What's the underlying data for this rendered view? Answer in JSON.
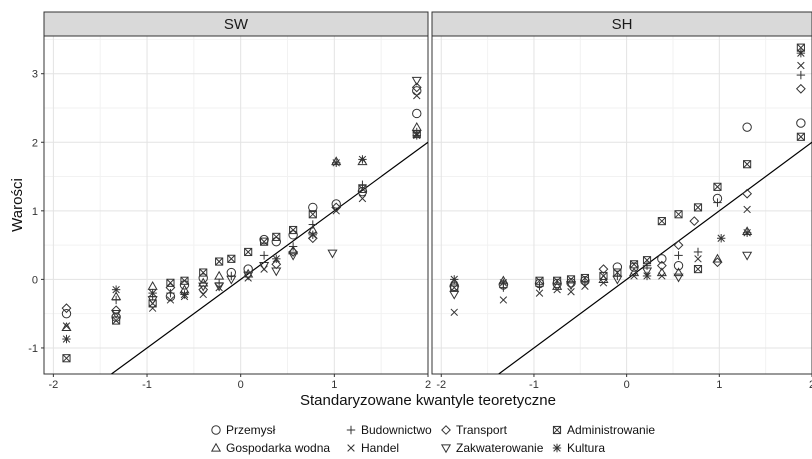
{
  "chart_data": {
    "type": "scatter",
    "xlabel": "Standaryzowane kwantyle teoretyczne",
    "ylabel": "Warości",
    "xlim": [
      -2.1,
      2.0
    ],
    "ylim": [
      -1.38,
      3.55
    ],
    "xticks": [
      -2,
      -1,
      0,
      1,
      2
    ],
    "yticks": [
      -1,
      0,
      1,
      2,
      3
    ],
    "grid": true,
    "legend_position": "bottom",
    "legend": [
      {
        "name": "Przemysł",
        "shape": "circle"
      },
      {
        "name": "Gospodarka wodna",
        "shape": "triangle"
      },
      {
        "name": "Budownictwo",
        "shape": "plus"
      },
      {
        "name": "Handel",
        "shape": "cross"
      },
      {
        "name": "Transport",
        "shape": "diamond"
      },
      {
        "name": "Zakwaterowanie",
        "shape": "triangle-down"
      },
      {
        "name": "Administrowanie",
        "shape": "square-x"
      },
      {
        "name": "Kultura",
        "shape": "asterisk"
      }
    ],
    "panels": [
      {
        "title": "SW",
        "line": [
          [
            -1.38,
            -1.38
          ],
          [
            2.05,
            2.05
          ]
        ],
        "points": [
          {
            "x": -1.86,
            "y": -0.5,
            "shape": "circle"
          },
          {
            "x": -1.86,
            "y": -0.42,
            "shape": "diamond"
          },
          {
            "x": -1.86,
            "y": -0.7,
            "shape": "triangle"
          },
          {
            "x": -1.86,
            "y": -0.68,
            "shape": "cross"
          },
          {
            "x": -1.86,
            "y": -0.87,
            "shape": "asterisk"
          },
          {
            "x": -1.86,
            "y": -1.15,
            "shape": "square-x"
          },
          {
            "x": -1.33,
            "y": -0.15,
            "shape": "asterisk"
          },
          {
            "x": -1.33,
            "y": -0.25,
            "shape": "triangle"
          },
          {
            "x": -1.33,
            "y": -0.3,
            "shape": "plus"
          },
          {
            "x": -1.33,
            "y": -0.45,
            "shape": "diamond"
          },
          {
            "x": -1.33,
            "y": -0.5,
            "shape": "triangle-down"
          },
          {
            "x": -1.33,
            "y": -0.55,
            "shape": "circle"
          },
          {
            "x": -1.33,
            "y": -0.6,
            "shape": "square-x"
          },
          {
            "x": -0.94,
            "y": -0.1,
            "shape": "triangle"
          },
          {
            "x": -0.94,
            "y": -0.2,
            "shape": "asterisk"
          },
          {
            "x": -0.94,
            "y": -0.25,
            "shape": "plus"
          },
          {
            "x": -0.94,
            "y": -0.3,
            "shape": "triangle-down"
          },
          {
            "x": -0.94,
            "y": -0.35,
            "shape": "square-x"
          },
          {
            "x": -0.94,
            "y": -0.42,
            "shape": "cross"
          },
          {
            "x": -0.75,
            "y": -0.05,
            "shape": "square-x"
          },
          {
            "x": -0.75,
            "y": -0.12,
            "shape": "diamond"
          },
          {
            "x": -0.75,
            "y": -0.2,
            "shape": "plus"
          },
          {
            "x": -0.75,
            "y": -0.25,
            "shape": "circle"
          },
          {
            "x": -0.75,
            "y": -0.3,
            "shape": "cross"
          },
          {
            "x": -0.6,
            "y": -0.02,
            "shape": "square-x"
          },
          {
            "x": -0.6,
            "y": -0.08,
            "shape": "circle"
          },
          {
            "x": -0.6,
            "y": -0.15,
            "shape": "triangle"
          },
          {
            "x": -0.6,
            "y": -0.22,
            "shape": "asterisk"
          },
          {
            "x": -0.6,
            "y": -0.25,
            "shape": "cross"
          },
          {
            "x": -0.4,
            "y": 0.1,
            "shape": "square-x"
          },
          {
            "x": -0.4,
            "y": 0.02,
            "shape": "circle"
          },
          {
            "x": -0.4,
            "y": -0.05,
            "shape": "triangle"
          },
          {
            "x": -0.4,
            "y": -0.1,
            "shape": "triangle-down"
          },
          {
            "x": -0.4,
            "y": -0.15,
            "shape": "diamond"
          },
          {
            "x": -0.4,
            "y": -0.22,
            "shape": "cross"
          },
          {
            "x": -0.23,
            "y": 0.26,
            "shape": "square-x"
          },
          {
            "x": -0.23,
            "y": 0.05,
            "shape": "triangle"
          },
          {
            "x": -0.23,
            "y": -0.05,
            "shape": "plus"
          },
          {
            "x": -0.23,
            "y": -0.1,
            "shape": "triangle-down"
          },
          {
            "x": -0.23,
            "y": -0.12,
            "shape": "cross"
          },
          {
            "x": -0.1,
            "y": 0.3,
            "shape": "square-x"
          },
          {
            "x": -0.1,
            "y": 0.1,
            "shape": "circle"
          },
          {
            "x": -0.1,
            "y": 0.05,
            "shape": "plus"
          },
          {
            "x": -0.1,
            "y": 0.0,
            "shape": "triangle-down"
          },
          {
            "x": 0.08,
            "y": 0.4,
            "shape": "square-x"
          },
          {
            "x": 0.08,
            "y": 0.15,
            "shape": "circle"
          },
          {
            "x": 0.08,
            "y": 0.08,
            "shape": "triangle"
          },
          {
            "x": 0.08,
            "y": 0.02,
            "shape": "cross"
          },
          {
            "x": 0.08,
            "y": 0.06,
            "shape": "triangle-down"
          },
          {
            "x": 0.25,
            "y": 0.55,
            "shape": "square-x"
          },
          {
            "x": 0.25,
            "y": 0.58,
            "shape": "circle"
          },
          {
            "x": 0.25,
            "y": 0.35,
            "shape": "plus"
          },
          {
            "x": 0.25,
            "y": 0.2,
            "shape": "triangle-down"
          },
          {
            "x": 0.25,
            "y": 0.15,
            "shape": "cross"
          },
          {
            "x": 0.38,
            "y": 0.62,
            "shape": "square-x"
          },
          {
            "x": 0.38,
            "y": 0.55,
            "shape": "circle"
          },
          {
            "x": 0.38,
            "y": 0.3,
            "shape": "asterisk"
          },
          {
            "x": 0.38,
            "y": 0.22,
            "shape": "diamond"
          },
          {
            "x": 0.38,
            "y": 0.12,
            "shape": "triangle-down"
          },
          {
            "x": 0.56,
            "y": 0.72,
            "shape": "square-x"
          },
          {
            "x": 0.56,
            "y": 0.65,
            "shape": "circle"
          },
          {
            "x": 0.56,
            "y": 0.48,
            "shape": "plus"
          },
          {
            "x": 0.56,
            "y": 0.42,
            "shape": "triangle"
          },
          {
            "x": 0.56,
            "y": 0.4,
            "shape": "diamond"
          },
          {
            "x": 0.56,
            "y": 0.35,
            "shape": "triangle-down"
          },
          {
            "x": 0.77,
            "y": 1.05,
            "shape": "circle"
          },
          {
            "x": 0.77,
            "y": 0.95,
            "shape": "square-x"
          },
          {
            "x": 0.77,
            "y": 0.8,
            "shape": "plus"
          },
          {
            "x": 0.77,
            "y": 0.72,
            "shape": "triangle"
          },
          {
            "x": 0.77,
            "y": 0.65,
            "shape": "asterisk"
          },
          {
            "x": 0.77,
            "y": 0.6,
            "shape": "diamond"
          },
          {
            "x": 1.02,
            "y": 1.72,
            "shape": "triangle"
          },
          {
            "x": 1.02,
            "y": 1.7,
            "shape": "asterisk"
          },
          {
            "x": 1.02,
            "y": 1.1,
            "shape": "circle"
          },
          {
            "x": 1.02,
            "y": 1.05,
            "shape": "diamond"
          },
          {
            "x": 1.02,
            "y": 1.0,
            "shape": "cross"
          },
          {
            "x": 0.98,
            "y": 0.38,
            "shape": "triangle-down"
          },
          {
            "x": 1.3,
            "y": 1.75,
            "shape": "asterisk"
          },
          {
            "x": 1.3,
            "y": 1.72,
            "shape": "triangle"
          },
          {
            "x": 1.3,
            "y": 1.38,
            "shape": "plus"
          },
          {
            "x": 1.3,
            "y": 1.32,
            "shape": "square-x"
          },
          {
            "x": 1.3,
            "y": 1.28,
            "shape": "circle"
          },
          {
            "x": 1.3,
            "y": 1.18,
            "shape": "cross"
          },
          {
            "x": 1.88,
            "y": 2.9,
            "shape": "triangle-down"
          },
          {
            "x": 1.88,
            "y": 2.8,
            "shape": "diamond"
          },
          {
            "x": 1.88,
            "y": 2.75,
            "shape": "circle"
          },
          {
            "x": 1.88,
            "y": 2.68,
            "shape": "cross"
          },
          {
            "x": 1.88,
            "y": 2.42,
            "shape": "circle"
          },
          {
            "x": 1.88,
            "y": 2.22,
            "shape": "triangle"
          },
          {
            "x": 1.88,
            "y": 2.15,
            "shape": "plus"
          },
          {
            "x": 1.88,
            "y": 2.12,
            "shape": "square-x"
          },
          {
            "x": 1.88,
            "y": 2.1,
            "shape": "asterisk"
          }
        ]
      },
      {
        "title": "SH",
        "line": [
          [
            -1.38,
            -1.38
          ],
          [
            2.05,
            2.05
          ]
        ],
        "points": [
          {
            "x": -1.86,
            "y": 0.0,
            "shape": "asterisk"
          },
          {
            "x": -1.86,
            "y": -0.05,
            "shape": "triangle"
          },
          {
            "x": -1.86,
            "y": -0.1,
            "shape": "circle"
          },
          {
            "x": -1.86,
            "y": -0.12,
            "shape": "square-x"
          },
          {
            "x": -1.86,
            "y": -0.22,
            "shape": "triangle-down"
          },
          {
            "x": -1.86,
            "y": -0.48,
            "shape": "cross"
          },
          {
            "x": -1.33,
            "y": -0.02,
            "shape": "triangle"
          },
          {
            "x": -1.33,
            "y": -0.05,
            "shape": "asterisk"
          },
          {
            "x": -1.33,
            "y": -0.08,
            "shape": "circle"
          },
          {
            "x": -1.33,
            "y": -0.12,
            "shape": "plus"
          },
          {
            "x": -1.33,
            "y": -0.3,
            "shape": "cross"
          },
          {
            "x": -0.94,
            "y": -0.02,
            "shape": "square-x"
          },
          {
            "x": -0.94,
            "y": -0.06,
            "shape": "circle"
          },
          {
            "x": -0.94,
            "y": -0.1,
            "shape": "plus"
          },
          {
            "x": -0.94,
            "y": -0.2,
            "shape": "cross"
          },
          {
            "x": -0.75,
            "y": -0.02,
            "shape": "square-x"
          },
          {
            "x": -0.75,
            "y": -0.06,
            "shape": "circle"
          },
          {
            "x": -0.75,
            "y": -0.1,
            "shape": "triangle"
          },
          {
            "x": -0.75,
            "y": -0.15,
            "shape": "cross"
          },
          {
            "x": -0.6,
            "y": 0.0,
            "shape": "square-x"
          },
          {
            "x": -0.6,
            "y": -0.05,
            "shape": "circle"
          },
          {
            "x": -0.6,
            "y": -0.08,
            "shape": "triangle-down"
          },
          {
            "x": -0.6,
            "y": -0.18,
            "shape": "cross"
          },
          {
            "x": -0.45,
            "y": 0.02,
            "shape": "square-x"
          },
          {
            "x": -0.45,
            "y": -0.02,
            "shape": "circle"
          },
          {
            "x": -0.45,
            "y": -0.05,
            "shape": "plus"
          },
          {
            "x": -0.45,
            "y": -0.1,
            "shape": "cross"
          },
          {
            "x": -0.25,
            "y": 0.15,
            "shape": "diamond"
          },
          {
            "x": -0.25,
            "y": 0.05,
            "shape": "square-x"
          },
          {
            "x": -0.25,
            "y": 0.0,
            "shape": "triangle"
          },
          {
            "x": -0.25,
            "y": -0.05,
            "shape": "cross"
          },
          {
            "x": -0.1,
            "y": 0.18,
            "shape": "circle"
          },
          {
            "x": -0.1,
            "y": 0.1,
            "shape": "square-x"
          },
          {
            "x": -0.1,
            "y": 0.05,
            "shape": "plus"
          },
          {
            "x": -0.1,
            "y": 0.0,
            "shape": "triangle-down"
          },
          {
            "x": 0.08,
            "y": 0.22,
            "shape": "square-x"
          },
          {
            "x": 0.08,
            "y": 0.18,
            "shape": "circle"
          },
          {
            "x": 0.08,
            "y": 0.1,
            "shape": "triangle"
          },
          {
            "x": 0.08,
            "y": 0.05,
            "shape": "cross"
          },
          {
            "x": 0.22,
            "y": 0.28,
            "shape": "square-x"
          },
          {
            "x": 0.22,
            "y": 0.2,
            "shape": "plus"
          },
          {
            "x": 0.22,
            "y": 0.12,
            "shape": "triangle-down"
          },
          {
            "x": 0.22,
            "y": 0.05,
            "shape": "asterisk"
          },
          {
            "x": 0.38,
            "y": 0.85,
            "shape": "square-x"
          },
          {
            "x": 0.38,
            "y": 0.3,
            "shape": "circle"
          },
          {
            "x": 0.38,
            "y": 0.2,
            "shape": "diamond"
          },
          {
            "x": 0.38,
            "y": 0.1,
            "shape": "triangle"
          },
          {
            "x": 0.38,
            "y": 0.05,
            "shape": "cross"
          },
          {
            "x": 0.56,
            "y": 0.95,
            "shape": "square-x"
          },
          {
            "x": 0.56,
            "y": 0.5,
            "shape": "diamond"
          },
          {
            "x": 0.56,
            "y": 0.35,
            "shape": "plus"
          },
          {
            "x": 0.56,
            "y": 0.2,
            "shape": "circle"
          },
          {
            "x": 0.56,
            "y": 0.1,
            "shape": "triangle"
          },
          {
            "x": 0.56,
            "y": 0.03,
            "shape": "triangle-down"
          },
          {
            "x": 0.73,
            "y": 0.85,
            "shape": "diamond"
          },
          {
            "x": 0.77,
            "y": 1.05,
            "shape": "square-x"
          },
          {
            "x": 0.77,
            "y": 0.4,
            "shape": "plus"
          },
          {
            "x": 0.77,
            "y": 0.3,
            "shape": "cross"
          },
          {
            "x": 0.77,
            "y": 0.15,
            "shape": "square-x"
          },
          {
            "x": 0.98,
            "y": 1.35,
            "shape": "square-x"
          },
          {
            "x": 0.98,
            "y": 1.18,
            "shape": "circle"
          },
          {
            "x": 0.98,
            "y": 1.12,
            "shape": "plus"
          },
          {
            "x": 0.98,
            "y": 0.3,
            "shape": "triangle"
          },
          {
            "x": 0.98,
            "y": 0.25,
            "shape": "diamond"
          },
          {
            "x": 1.02,
            "y": 0.6,
            "shape": "asterisk"
          },
          {
            "x": 1.3,
            "y": 2.22,
            "shape": "circle"
          },
          {
            "x": 1.3,
            "y": 1.68,
            "shape": "square-x"
          },
          {
            "x": 1.3,
            "y": 1.25,
            "shape": "diamond"
          },
          {
            "x": 1.3,
            "y": 1.02,
            "shape": "cross"
          },
          {
            "x": 1.3,
            "y": 0.7,
            "shape": "triangle"
          },
          {
            "x": 1.3,
            "y": 0.68,
            "shape": "asterisk"
          },
          {
            "x": 1.3,
            "y": 0.35,
            "shape": "triangle-down"
          },
          {
            "x": 1.88,
            "y": 3.38,
            "shape": "square-x"
          },
          {
            "x": 1.88,
            "y": 3.3,
            "shape": "asterisk"
          },
          {
            "x": 1.88,
            "y": 3.12,
            "shape": "cross"
          },
          {
            "x": 1.88,
            "y": 2.98,
            "shape": "plus"
          },
          {
            "x": 1.88,
            "y": 2.78,
            "shape": "diamond"
          },
          {
            "x": 1.88,
            "y": 2.28,
            "shape": "circle"
          },
          {
            "x": 1.88,
            "y": 2.08,
            "shape": "square-x"
          }
        ]
      }
    ]
  }
}
